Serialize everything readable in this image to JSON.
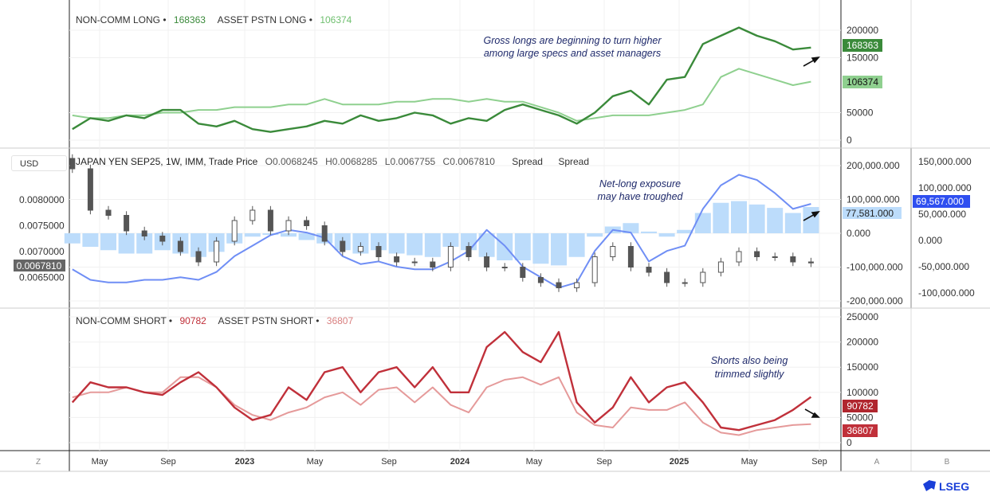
{
  "currency_button": "USD",
  "legend_top": {
    "s1_name": "NON-COMM LONG",
    "s1_value": "168363",
    "s2_name": "ASSET PSTN LONG",
    "s2_value": "106374",
    "sep": "•"
  },
  "legend_mid": {
    "title": "JAPAN YEN SEP25, 1W, IMM, Trade Price",
    "o": "O0.0068245",
    "h": "H0.0068285",
    "l": "L0.0067755",
    "c": "C0.0067810",
    "spread1": "Spread",
    "spread2": "Spread"
  },
  "legend_bot": {
    "s1_name": "NON-COMM SHORT",
    "s1_value": "90782",
    "s2_name": "ASSET PSTN SHORT",
    "s2_value": "36807",
    "sep": "•"
  },
  "annotations": {
    "top": [
      "Gross longs are beginning to turn higher",
      "among large specs and asset managers"
    ],
    "mid": [
      "Net-long exposure",
      "may have troughed"
    ],
    "bot": [
      "Shorts also being",
      "trimmed slightly"
    ]
  },
  "badges": {
    "top1": "168363",
    "top2": "106374",
    "price": "0.0067810",
    "spread1": "77,581.000",
    "spread2": "69,567.000",
    "bot1": "90782",
    "bot2": "36807"
  },
  "axis_labels": {
    "top": [
      "200000",
      "150000",
      "50000",
      "0"
    ],
    "mid_left": [
      "0.0080000",
      "0.0075000",
      "0.0070000",
      "0.0065000"
    ],
    "mid_right1": [
      "200,000.000",
      "100,000.000",
      "0.000",
      "-100,000.000",
      "-200,000.000"
    ],
    "mid_right2": [
      "150,000.000",
      "100,000.000",
      "50,000.000",
      "0.000",
      "-50,000.000",
      "-100,000.000"
    ],
    "bot": [
      "250000",
      "200000",
      "150000",
      "100000",
      "50000",
      "0"
    ],
    "time": [
      "May",
      "Sep",
      "2023",
      "May",
      "Sep",
      "2024",
      "May",
      "Sep",
      "2025",
      "May",
      "Sep"
    ],
    "corner_left": "Z",
    "corner_a": "A",
    "corner_b": "B"
  },
  "colors": {
    "noncomm_long": "#3a8a3a",
    "asset_long": "#8fd08f",
    "noncomm_short": "#c0303a",
    "asset_short": "#e59a9a",
    "spread_hist": "#bcdcfb",
    "spread_line": "#6f8ef5",
    "candle": "#555555"
  },
  "brand": "LSEG",
  "chart_data": [
    {
      "type": "line",
      "panel": "top",
      "x": [
        "2022-03",
        "2022-04",
        "2022-05",
        "2022-06",
        "2022-07",
        "2022-08",
        "2022-09",
        "2022-10",
        "2022-11",
        "2022-12",
        "2023-01",
        "2023-02",
        "2023-03",
        "2023-04",
        "2023-05",
        "2023-06",
        "2023-07",
        "2023-08",
        "2023-09",
        "2023-10",
        "2023-11",
        "2023-12",
        "2024-01",
        "2024-02",
        "2024-03",
        "2024-04",
        "2024-05",
        "2024-06",
        "2024-07",
        "2024-08",
        "2024-09",
        "2024-10",
        "2024-11",
        "2024-12",
        "2025-01",
        "2025-02",
        "2025-03",
        "2025-04",
        "2025-05",
        "2025-06",
        "2025-07",
        "2025-08"
      ],
      "ylim": [
        0,
        220000
      ],
      "series": [
        {
          "name": "NON-COMM LONG",
          "values": [
            20000,
            40000,
            35000,
            45000,
            40000,
            55000,
            55000,
            30000,
            25000,
            35000,
            20000,
            15000,
            20000,
            25000,
            35000,
            30000,
            45000,
            35000,
            40000,
            50000,
            45000,
            30000,
            40000,
            35000,
            55000,
            65000,
            55000,
            45000,
            30000,
            50000,
            80000,
            90000,
            65000,
            110000,
            115000,
            175000,
            190000,
            205000,
            190000,
            180000,
            165000,
            168363
          ]
        },
        {
          "name": "ASSET PSTN LONG",
          "values": [
            45000,
            40000,
            40000,
            45000,
            45000,
            50000,
            50000,
            55000,
            55000,
            60000,
            60000,
            60000,
            65000,
            65000,
            75000,
            65000,
            65000,
            65000,
            70000,
            70000,
            75000,
            75000,
            70000,
            75000,
            70000,
            70000,
            60000,
            50000,
            35000,
            40000,
            45000,
            45000,
            45000,
            50000,
            55000,
            65000,
            115000,
            130000,
            120000,
            110000,
            100000,
            106374
          ]
        }
      ]
    },
    {
      "type": "candlestick+bar+line",
      "panel": "middle",
      "price_close": [
        0.0086,
        0.0078,
        0.0077,
        0.0074,
        0.0073,
        0.0072,
        0.007,
        0.0068,
        0.0072,
        0.0076,
        0.0078,
        0.0074,
        0.0076,
        0.0075,
        0.0072,
        0.007,
        0.0071,
        0.0069,
        0.0068,
        0.0068,
        0.0067,
        0.0071,
        0.0069,
        0.0067,
        0.0067,
        0.0065,
        0.0064,
        0.0063,
        0.0064,
        0.0069,
        0.0071,
        0.0067,
        0.0066,
        0.0064,
        0.0064,
        0.0066,
        0.0068,
        0.007,
        0.0069,
        0.0069,
        0.0068,
        0.006781
      ],
      "price_ylim": [
        0.006,
        0.0088
      ],
      "spread_hist": [
        -30000000,
        -40000000,
        -50000000,
        -60000000,
        -60000000,
        -50000000,
        -60000000,
        -70000000,
        -55000000,
        -30000000,
        -10000000,
        -5000000,
        -10000000,
        -20000000,
        -30000000,
        -50000000,
        -60000000,
        -50000000,
        -60000000,
        -65000000,
        -70000000,
        -40000000,
        -50000000,
        -70000000,
        -80000000,
        -80000000,
        -90000000,
        -95000000,
        -70000000,
        -10000000,
        20000000,
        30000000,
        5000000,
        -10000000,
        10000000,
        60000000,
        90000000,
        95000000,
        85000000,
        75000000,
        60000000,
        77581000
      ],
      "spread_line": [
        -55000000,
        -75000000,
        -80000000,
        -80000000,
        -75000000,
        -75000000,
        -70000000,
        -75000000,
        -60000000,
        -30000000,
        -10000000,
        10000000,
        20000000,
        15000000,
        5000000,
        -30000000,
        -45000000,
        -40000000,
        -50000000,
        -55000000,
        -55000000,
        -40000000,
        -20000000,
        20000000,
        -10000000,
        -50000000,
        -70000000,
        -90000000,
        -80000000,
        -20000000,
        20000000,
        15000000,
        -40000000,
        -20000000,
        -10000000,
        60000000,
        105000000,
        125000000,
        115000000,
        90000000,
        60000000,
        69567000
      ]
    },
    {
      "type": "line",
      "panel": "bottom",
      "ylim": [
        0,
        250000
      ],
      "series": [
        {
          "name": "NON-COMM SHORT",
          "values": [
            80000,
            120000,
            110000,
            110000,
            100000,
            95000,
            120000,
            140000,
            110000,
            70000,
            45000,
            55000,
            110000,
            85000,
            140000,
            150000,
            100000,
            140000,
            150000,
            110000,
            150000,
            100000,
            100000,
            190000,
            220000,
            180000,
            160000,
            220000,
            80000,
            40000,
            70000,
            130000,
            80000,
            110000,
            120000,
            80000,
            30000,
            25000,
            35000,
            45000,
            65000,
            90782
          ]
        },
        {
          "name": "ASSET PSTN SHORT",
          "values": [
            90000,
            100000,
            100000,
            110000,
            100000,
            100000,
            130000,
            130000,
            110000,
            75000,
            55000,
            45000,
            60000,
            70000,
            90000,
            100000,
            75000,
            105000,
            110000,
            80000,
            110000,
            75000,
            60000,
            110000,
            125000,
            130000,
            115000,
            130000,
            60000,
            35000,
            30000,
            70000,
            65000,
            65000,
            80000,
            40000,
            20000,
            15000,
            25000,
            30000,
            35000,
            36807
          ]
        }
      ]
    }
  ]
}
